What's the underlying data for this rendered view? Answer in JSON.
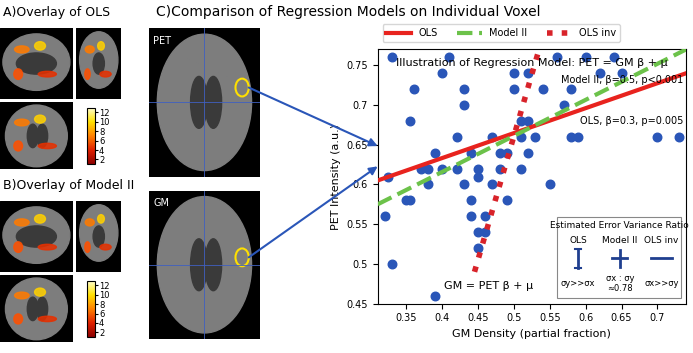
{
  "title": "C)Comparison of Regression Models on Individual Voxel",
  "panels": [
    {
      "title": "A)Overlay of OLS",
      "type": "image",
      "colorbar_range": [
        1,
        13
      ],
      "colorbar_ticks": [
        2,
        4,
        6,
        8,
        10,
        12
      ]
    },
    {
      "title": "B)Overlay of Model II",
      "type": "image",
      "colorbar_range": [
        1,
        13
      ],
      "colorbar_ticks": [
        2,
        4,
        6,
        8,
        10,
        12
      ]
    }
  ],
  "image_labels": [
    "PET",
    "GM"
  ],
  "chart_data": {
    "type": "scatter",
    "title": "Illustration of Regression Model: PET = GM β + μ",
    "x_label": "GM Density (partial fraction)",
    "y_label": "PET Intensity (a.u.)",
    "xlim": [
      0.31,
      0.74
    ],
    "xticks": [
      0.35,
      0.4,
      0.45,
      0.5,
      0.55,
      0.6,
      0.65,
      0.7
    ],
    "ylim": [
      0.45,
      0.77
    ],
    "yticks": [
      0.45,
      0.5,
      0.55,
      0.6,
      0.65,
      0.7,
      0.75
    ],
    "points": {
      "color": "#2a56b8",
      "marker": "o",
      "x": [
        0.32,
        0.33,
        0.325,
        0.33,
        0.35,
        0.355,
        0.355,
        0.36,
        0.37,
        0.38,
        0.38,
        0.39,
        0.39,
        0.4,
        0.4,
        0.41,
        0.42,
        0.42,
        0.43,
        0.43,
        0.43,
        0.44,
        0.44,
        0.44,
        0.45,
        0.45,
        0.45,
        0.45,
        0.46,
        0.46,
        0.47,
        0.47,
        0.48,
        0.48,
        0.49,
        0.49,
        0.5,
        0.5,
        0.51,
        0.51,
        0.51,
        0.52,
        0.52,
        0.52,
        0.53,
        0.54,
        0.55,
        0.56,
        0.57,
        0.58,
        0.58,
        0.59,
        0.6,
        0.62,
        0.64,
        0.65,
        0.7,
        0.73
      ],
      "values": [
        0.56,
        0.5,
        0.61,
        0.76,
        0.58,
        0.58,
        0.68,
        0.72,
        0.62,
        0.6,
        0.62,
        0.64,
        0.46,
        0.62,
        0.74,
        0.76,
        0.62,
        0.66,
        0.72,
        0.7,
        0.6,
        0.56,
        0.58,
        0.64,
        0.54,
        0.52,
        0.61,
        0.62,
        0.56,
        0.54,
        0.66,
        0.6,
        0.64,
        0.62,
        0.58,
        0.64,
        0.74,
        0.72,
        0.68,
        0.66,
        0.62,
        0.74,
        0.68,
        0.64,
        0.66,
        0.72,
        0.6,
        0.76,
        0.7,
        0.66,
        0.72,
        0.66,
        0.76,
        0.74,
        0.76,
        0.74,
        0.66,
        0.66
      ]
    },
    "series": [
      {
        "name": "OLS",
        "color": "#e8231e",
        "line_style": "solid",
        "x": [
          0.31,
          0.74
        ],
        "values": [
          0.605,
          0.74
        ]
      },
      {
        "name": "Model II",
        "color": "#6cc24a",
        "line_style": "dashed",
        "x": [
          0.31,
          0.74
        ],
        "values": [
          0.575,
          0.77
        ]
      },
      {
        "name": "OLS inv",
        "color": "#d8232a",
        "line_style": "dotted",
        "x": [
          0.445,
          0.535
        ],
        "values": [
          0.49,
          0.77
        ]
      }
    ],
    "legend": "upper left",
    "annotations": [
      "Model II, β=0.5, p<0.001",
      "OLS, β=0.3, p=0.005",
      "GM = PET β + μ"
    ],
    "inset": {
      "title": "Estimated Error Variance Ratio",
      "columns": [
        {
          "name": "OLS",
          "ratio": "σy>>σx"
        },
        {
          "name": "Model II",
          "ratio": "σx : σy\n≈0.78"
        },
        {
          "name": "OLS inv",
          "ratio": "σx>>σy"
        }
      ]
    }
  }
}
